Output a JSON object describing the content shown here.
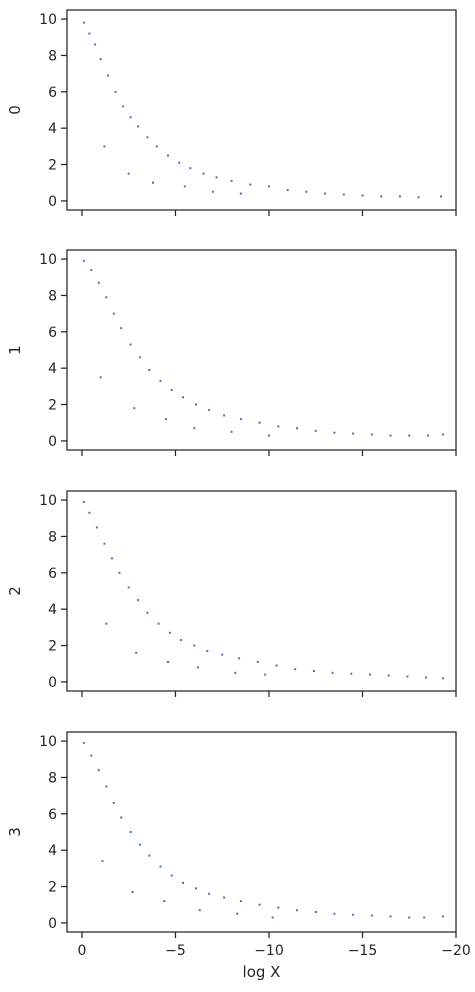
{
  "chart_data": [
    {
      "type": "scatter",
      "ylabel": "0",
      "xlim": [
        0.8,
        -20
      ],
      "ylim": [
        -0.5,
        10.5
      ],
      "x_ticks": [
        0,
        -5,
        -10,
        -15,
        -20
      ],
      "x_tick_labels": [],
      "y_ticks": [
        0,
        2,
        4,
        6,
        8,
        10
      ],
      "y_tick_labels": [
        "0",
        "2",
        "4",
        "6",
        "8",
        "10"
      ],
      "grid": false,
      "color": "#4c72b0",
      "points": [
        [
          -0.1,
          9.8
        ],
        [
          -0.4,
          9.2
        ],
        [
          -0.7,
          8.6
        ],
        [
          -1.0,
          7.8
        ],
        [
          -1.4,
          6.9
        ],
        [
          -1.8,
          6.0
        ],
        [
          -2.2,
          5.2
        ],
        [
          -2.6,
          4.6
        ],
        [
          -3.0,
          4.1
        ],
        [
          -3.5,
          3.5
        ],
        [
          -4.0,
          3.0
        ],
        [
          -4.6,
          2.5
        ],
        [
          -5.2,
          2.1
        ],
        [
          -5.8,
          1.8
        ],
        [
          -6.5,
          1.5
        ],
        [
          -7.2,
          1.3
        ],
        [
          -8.0,
          1.1
        ],
        [
          -9.0,
          0.9
        ],
        [
          -10.0,
          0.8
        ],
        [
          -11.0,
          0.6
        ],
        [
          -12.0,
          0.5
        ],
        [
          -13.0,
          0.4
        ],
        [
          -14.0,
          0.35
        ],
        [
          -15.0,
          0.3
        ],
        [
          -16.0,
          0.25
        ],
        [
          -17.0,
          0.25
        ],
        [
          -18.0,
          0.2
        ],
        [
          -19.2,
          0.25
        ],
        [
          -1.2,
          3.0
        ],
        [
          -2.5,
          1.5
        ],
        [
          -3.8,
          1.0
        ],
        [
          -5.5,
          0.8
        ],
        [
          -7.0,
          0.5
        ],
        [
          -8.5,
          0.4
        ]
      ]
    },
    {
      "type": "scatter",
      "ylabel": "1",
      "xlim": [
        0.8,
        -20
      ],
      "ylim": [
        -0.5,
        10.5
      ],
      "x_ticks": [
        0,
        -5,
        -10,
        -15,
        -20
      ],
      "x_tick_labels": [],
      "y_ticks": [
        0,
        2,
        4,
        6,
        8,
        10
      ],
      "y_tick_labels": [
        "0",
        "2",
        "4",
        "6",
        "8",
        "10"
      ],
      "grid": false,
      "color": "#4c72b0",
      "points": [
        [
          -0.1,
          9.9
        ],
        [
          -0.5,
          9.4
        ],
        [
          -0.9,
          8.7
        ],
        [
          -1.3,
          7.9
        ],
        [
          -1.7,
          7.0
        ],
        [
          -2.1,
          6.2
        ],
        [
          -2.6,
          5.3
        ],
        [
          -3.1,
          4.6
        ],
        [
          -3.6,
          3.9
        ],
        [
          -4.2,
          3.3
        ],
        [
          -4.8,
          2.8
        ],
        [
          -5.4,
          2.4
        ],
        [
          -6.1,
          2.0
        ],
        [
          -6.8,
          1.7
        ],
        [
          -7.6,
          1.4
        ],
        [
          -8.5,
          1.2
        ],
        [
          -9.5,
          1.0
        ],
        [
          -10.5,
          0.8
        ],
        [
          -11.5,
          0.7
        ],
        [
          -12.5,
          0.55
        ],
        [
          -13.5,
          0.45
        ],
        [
          -14.5,
          0.4
        ],
        [
          -15.5,
          0.35
        ],
        [
          -16.5,
          0.3
        ],
        [
          -17.5,
          0.3
        ],
        [
          -18.5,
          0.3
        ],
        [
          -19.3,
          0.35
        ],
        [
          -1.0,
          3.5
        ],
        [
          -2.8,
          1.8
        ],
        [
          -4.5,
          1.2
        ],
        [
          -6.0,
          0.7
        ],
        [
          -8.0,
          0.5
        ],
        [
          -10.0,
          0.3
        ]
      ]
    },
    {
      "type": "scatter",
      "ylabel": "2",
      "xlim": [
        0.8,
        -20
      ],
      "ylim": [
        -0.5,
        10.5
      ],
      "x_ticks": [
        0,
        -5,
        -10,
        -15,
        -20
      ],
      "x_tick_labels": [],
      "y_ticks": [
        0,
        2,
        4,
        6,
        8,
        10
      ],
      "y_tick_labels": [
        "0",
        "2",
        "4",
        "6",
        "8",
        "10"
      ],
      "grid": false,
      "color": "#4c72b0",
      "points": [
        [
          -0.1,
          9.9
        ],
        [
          -0.4,
          9.3
        ],
        [
          -0.8,
          8.5
        ],
        [
          -1.2,
          7.6
        ],
        [
          -1.6,
          6.8
        ],
        [
          -2.0,
          6.0
        ],
        [
          -2.5,
          5.2
        ],
        [
          -3.0,
          4.5
        ],
        [
          -3.5,
          3.8
        ],
        [
          -4.1,
          3.2
        ],
        [
          -4.7,
          2.7
        ],
        [
          -5.3,
          2.3
        ],
        [
          -6.0,
          2.0
        ],
        [
          -6.7,
          1.7
        ],
        [
          -7.5,
          1.5
        ],
        [
          -8.4,
          1.3
        ],
        [
          -9.4,
          1.1
        ],
        [
          -10.4,
          0.9
        ],
        [
          -11.4,
          0.7
        ],
        [
          -12.4,
          0.6
        ],
        [
          -13.4,
          0.5
        ],
        [
          -14.4,
          0.45
        ],
        [
          -15.4,
          0.4
        ],
        [
          -16.4,
          0.35
        ],
        [
          -17.4,
          0.3
        ],
        [
          -18.4,
          0.25
        ],
        [
          -19.3,
          0.2
        ],
        [
          -1.3,
          3.2
        ],
        [
          -2.9,
          1.6
        ],
        [
          -4.6,
          1.1
        ],
        [
          -6.2,
          0.8
        ],
        [
          -8.2,
          0.5
        ],
        [
          -9.8,
          0.4
        ]
      ]
    },
    {
      "type": "scatter",
      "ylabel": "3",
      "xlabel": "log X",
      "xlim": [
        0.8,
        -20
      ],
      "ylim": [
        -0.5,
        10.5
      ],
      "x_ticks": [
        0,
        -5,
        -10,
        -15,
        -20
      ],
      "x_tick_labels": [
        "0",
        "−5",
        "−10",
        "−15",
        "−20"
      ],
      "y_ticks": [
        0,
        2,
        4,
        6,
        8,
        10
      ],
      "y_tick_labels": [
        "0",
        "2",
        "4",
        "6",
        "8",
        "10"
      ],
      "grid": false,
      "color": "#4c72b0",
      "points": [
        [
          -0.1,
          9.9
        ],
        [
          -0.5,
          9.2
        ],
        [
          -0.9,
          8.4
        ],
        [
          -1.3,
          7.5
        ],
        [
          -1.7,
          6.6
        ],
        [
          -2.1,
          5.8
        ],
        [
          -2.6,
          5.0
        ],
        [
          -3.1,
          4.3
        ],
        [
          -3.6,
          3.7
        ],
        [
          -4.2,
          3.1
        ],
        [
          -4.8,
          2.6
        ],
        [
          -5.4,
          2.2
        ],
        [
          -6.1,
          1.9
        ],
        [
          -6.8,
          1.6
        ],
        [
          -7.6,
          1.4
        ],
        [
          -8.5,
          1.2
        ],
        [
          -9.5,
          1.0
        ],
        [
          -10.5,
          0.85
        ],
        [
          -11.5,
          0.7
        ],
        [
          -12.5,
          0.6
        ],
        [
          -13.5,
          0.5
        ],
        [
          -14.5,
          0.45
        ],
        [
          -15.5,
          0.4
        ],
        [
          -16.5,
          0.35
        ],
        [
          -17.5,
          0.3
        ],
        [
          -18.3,
          0.3
        ],
        [
          -19.3,
          0.35
        ],
        [
          -1.1,
          3.4
        ],
        [
          -2.7,
          1.7
        ],
        [
          -4.4,
          1.2
        ],
        [
          -6.3,
          0.7
        ],
        [
          -8.3,
          0.5
        ],
        [
          -10.2,
          0.3
        ]
      ]
    }
  ]
}
